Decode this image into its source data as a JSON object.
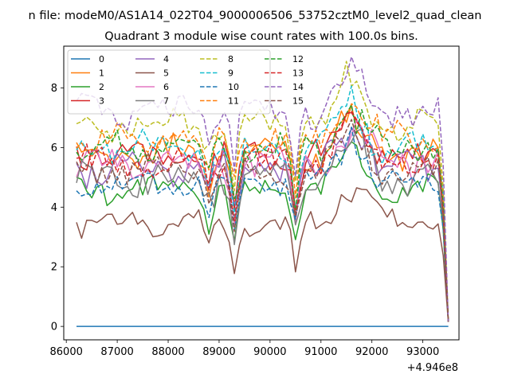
{
  "chart_data": {
    "type": "line",
    "suptitle": "n file: modeM0/AS1A14_022T04_9000006506_53752cztM0_level2_quad_clean",
    "title": "Quadrant 3 module wise count rates with 100.0s bins.",
    "xlabel": "",
    "ylabel": "",
    "x_offset_label": "+4.946e8",
    "xlim": [
      85950,
      93710
    ],
    "ylim": [
      -0.45,
      9.4
    ],
    "x_start": 86200,
    "x_step": 100,
    "x_end": 93500,
    "xticks": [
      86000,
      87000,
      88000,
      89000,
      90000,
      91000,
      92000,
      93000
    ],
    "xtick_labels": [
      "86000",
      "87000",
      "88000",
      "89000",
      "90000",
      "91000",
      "92000",
      "93000"
    ],
    "yticks": [
      0,
      2,
      4,
      6,
      8
    ],
    "ytick_labels": [
      "0",
      "2",
      "4",
      "6",
      "8"
    ],
    "legend_position": "top-left",
    "legend_columns": 4,
    "series": [
      {
        "name": "0",
        "color": "#1f77b4",
        "dashed": false,
        "base": 0.0,
        "amp": 0.0,
        "seed": 0
      },
      {
        "name": "1",
        "color": "#ff7f0e",
        "dashed": false,
        "base": 5.8,
        "amp": 0.45,
        "seed": 1
      },
      {
        "name": "2",
        "color": "#2ca02c",
        "dashed": false,
        "base": 4.6,
        "amp": 0.35,
        "seed": 2
      },
      {
        "name": "3",
        "color": "#d62728",
        "dashed": false,
        "base": 5.7,
        "amp": 0.45,
        "seed": 3
      },
      {
        "name": "4",
        "color": "#9467bd",
        "dashed": false,
        "base": 5.3,
        "amp": 0.45,
        "seed": 4
      },
      {
        "name": "5",
        "color": "#8c564b",
        "dashed": false,
        "base": 3.45,
        "amp": 0.3,
        "seed": 5
      },
      {
        "name": "6",
        "color": "#e377c2",
        "dashed": false,
        "base": 5.5,
        "amp": 0.45,
        "seed": 6
      },
      {
        "name": "7",
        "color": "#7f7f7f",
        "dashed": false,
        "base": 5.0,
        "amp": 0.45,
        "seed": 7
      },
      {
        "name": "8",
        "color": "#bcbd22",
        "dashed": true,
        "base": 6.8,
        "amp": 0.4,
        "seed": 8
      },
      {
        "name": "9",
        "color": "#17becf",
        "dashed": true,
        "base": 6.0,
        "amp": 0.4,
        "seed": 9
      },
      {
        "name": "10",
        "color": "#1f77b4",
        "dashed": true,
        "base": 4.8,
        "amp": 0.35,
        "seed": 10
      },
      {
        "name": "11",
        "color": "#ff7f0e",
        "dashed": true,
        "base": 6.3,
        "amp": 0.4,
        "seed": 11
      },
      {
        "name": "12",
        "color": "#2ca02c",
        "dashed": true,
        "base": 6.0,
        "amp": 0.4,
        "seed": 12
      },
      {
        "name": "13",
        "color": "#d62728",
        "dashed": true,
        "base": 5.5,
        "amp": 0.4,
        "seed": 13
      },
      {
        "name": "14",
        "color": "#9467bd",
        "dashed": true,
        "base": 7.2,
        "amp": 0.45,
        "seed": 14
      },
      {
        "name": "15",
        "color": "#8c564b",
        "dashed": true,
        "base": 5.2,
        "amp": 0.4,
        "seed": 15
      }
    ],
    "events": [
      {
        "x": 88800,
        "depth": 1.2
      },
      {
        "x": 89300,
        "depth": 2.4
      },
      {
        "x": 90500,
        "depth": 2.2
      },
      {
        "x": 91600,
        "rise": 1.9
      }
    ],
    "end_value": 0.15
  }
}
